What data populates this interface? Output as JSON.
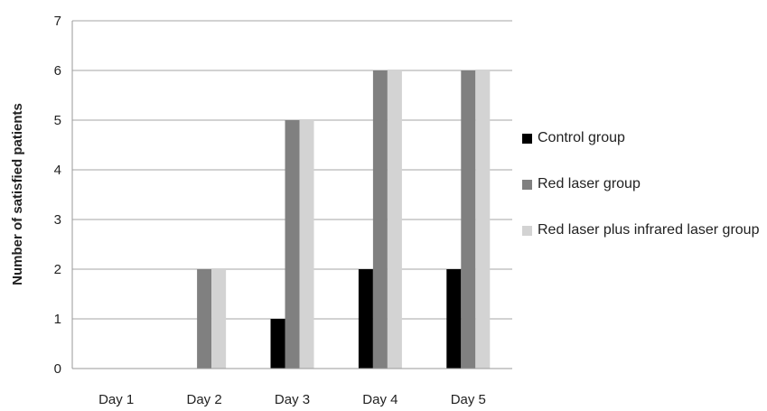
{
  "chart_data": {
    "type": "bar",
    "title": "",
    "xlabel": "",
    "ylabel": "Number of satisfied patients",
    "ylim": [
      0,
      7
    ],
    "yticks": [
      "0",
      "1",
      "2",
      "3",
      "4",
      "5",
      "6",
      "7"
    ],
    "grid": true,
    "legend_position": "right",
    "categories": [
      "Day 1",
      "Day 2",
      "Day 3",
      "Day 4",
      "Day 5"
    ],
    "series": [
      {
        "name": "Control group",
        "color": "#000000",
        "values": [
          0,
          0,
          1,
          2,
          2
        ]
      },
      {
        "name": "Red laser group",
        "color": "#808080",
        "values": [
          0,
          2,
          5,
          6,
          6
        ]
      },
      {
        "name": "Red laser plus infrared laser group",
        "color": "#d3d3d3",
        "values": [
          0,
          2,
          5,
          6,
          6
        ]
      }
    ]
  }
}
